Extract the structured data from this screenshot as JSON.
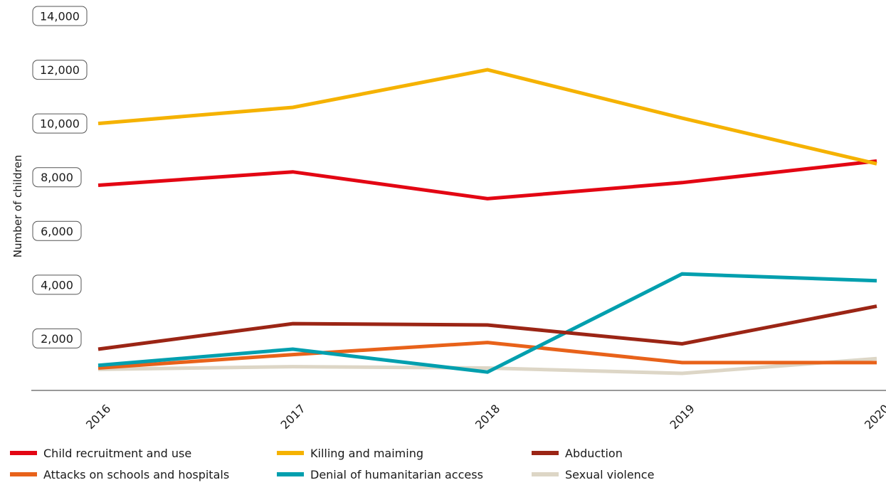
{
  "chart_data": {
    "type": "line",
    "title": "",
    "xlabel": "",
    "ylabel": "Number of children",
    "categories": [
      "2016",
      "2017",
      "2018",
      "2019",
      "2020"
    ],
    "ylim": [
      0,
      14000
    ],
    "yticks": [
      2000,
      4000,
      6000,
      8000,
      10000,
      12000,
      14000
    ],
    "ytick_labels": [
      "2,000",
      "4,000",
      "6,000",
      "8,000",
      "10,000",
      "12,000",
      "14,000"
    ],
    "grid": false,
    "legend_position": "bottom",
    "series": [
      {
        "name": "Child recruitment and use",
        "color": "#e30613",
        "values": [
          7700,
          8200,
          7200,
          7800,
          8600
        ]
      },
      {
        "name": "Killing and maiming",
        "color": "#f5b200",
        "values": [
          10000,
          10600,
          12000,
          10200,
          8500
        ]
      },
      {
        "name": "Abduction",
        "color": "#9b2515",
        "values": [
          1600,
          2550,
          2500,
          1800,
          3200
        ]
      },
      {
        "name": "Attacks on schools and hospitals",
        "color": "#e8621a",
        "values": [
          900,
          1400,
          1850,
          1100,
          1100
        ]
      },
      {
        "name": "Denial of humanitarian access",
        "color": "#009fae",
        "values": [
          1000,
          1600,
          750,
          4400,
          4150
        ]
      },
      {
        "name": "Sexual violence",
        "color": "#ddd6c6",
        "values": [
          850,
          950,
          900,
          700,
          1250
        ]
      }
    ]
  }
}
